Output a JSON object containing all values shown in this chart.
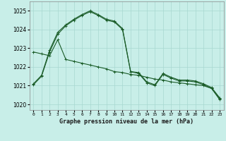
{
  "title": "Graphe pression niveau de la mer (hPa)",
  "bg_color": "#c8eee8",
  "grid_color": "#a8d8d0",
  "line_color": "#1a5c28",
  "xlim": [
    -0.5,
    23.5
  ],
  "ylim": [
    1019.7,
    1025.5
  ],
  "yticks": [
    1020,
    1021,
    1022,
    1023,
    1024,
    1025
  ],
  "xtick_labels": [
    "0",
    "1",
    "2",
    "3",
    "4",
    "5",
    "6",
    "7",
    "8",
    "9",
    "10",
    "11",
    "12",
    "13",
    "14",
    "15",
    "16",
    "17",
    "18",
    "19",
    "20",
    "21",
    "22",
    "23"
  ],
  "series1_x": [
    0,
    1,
    2,
    3,
    4,
    5,
    6,
    7,
    8,
    9,
    10,
    11,
    12,
    13,
    14,
    15,
    16,
    17,
    18,
    19,
    20,
    21,
    22,
    23
  ],
  "series1_y": [
    1021.1,
    1021.55,
    1022.9,
    1023.85,
    1024.25,
    1024.55,
    1024.8,
    1025.0,
    1024.8,
    1024.55,
    1024.45,
    1024.05,
    1021.75,
    1021.7,
    1021.2,
    1021.05,
    1021.65,
    1021.45,
    1021.3,
    1021.3,
    1021.25,
    1021.1,
    1020.9,
    1020.35
  ],
  "series2_x": [
    0,
    1,
    2,
    3,
    4,
    5,
    6,
    7,
    8,
    9,
    10,
    11,
    12,
    13,
    14,
    15,
    16,
    17,
    18,
    19,
    20,
    21,
    22,
    23
  ],
  "series2_y": [
    1021.05,
    1021.5,
    1022.8,
    1023.75,
    1024.2,
    1024.5,
    1024.75,
    1024.95,
    1024.75,
    1024.5,
    1024.4,
    1024.0,
    1021.75,
    1021.65,
    1021.15,
    1021.0,
    1021.6,
    1021.4,
    1021.25,
    1021.25,
    1021.2,
    1021.05,
    1020.85,
    1020.25
  ],
  "series3_x": [
    0,
    1,
    2,
    3,
    4,
    5,
    6,
    7,
    8,
    9,
    10,
    11,
    12,
    13,
    14,
    15,
    16,
    17,
    18,
    19,
    20,
    21,
    22,
    23
  ],
  "series3_y": [
    1022.8,
    1022.7,
    1022.6,
    1023.45,
    1022.4,
    1022.3,
    1022.2,
    1022.1,
    1022.0,
    1021.9,
    1021.75,
    1021.7,
    1021.6,
    1021.55,
    1021.45,
    1021.35,
    1021.3,
    1021.2,
    1021.15,
    1021.1,
    1021.05,
    1021.0,
    1020.85,
    1020.3
  ]
}
